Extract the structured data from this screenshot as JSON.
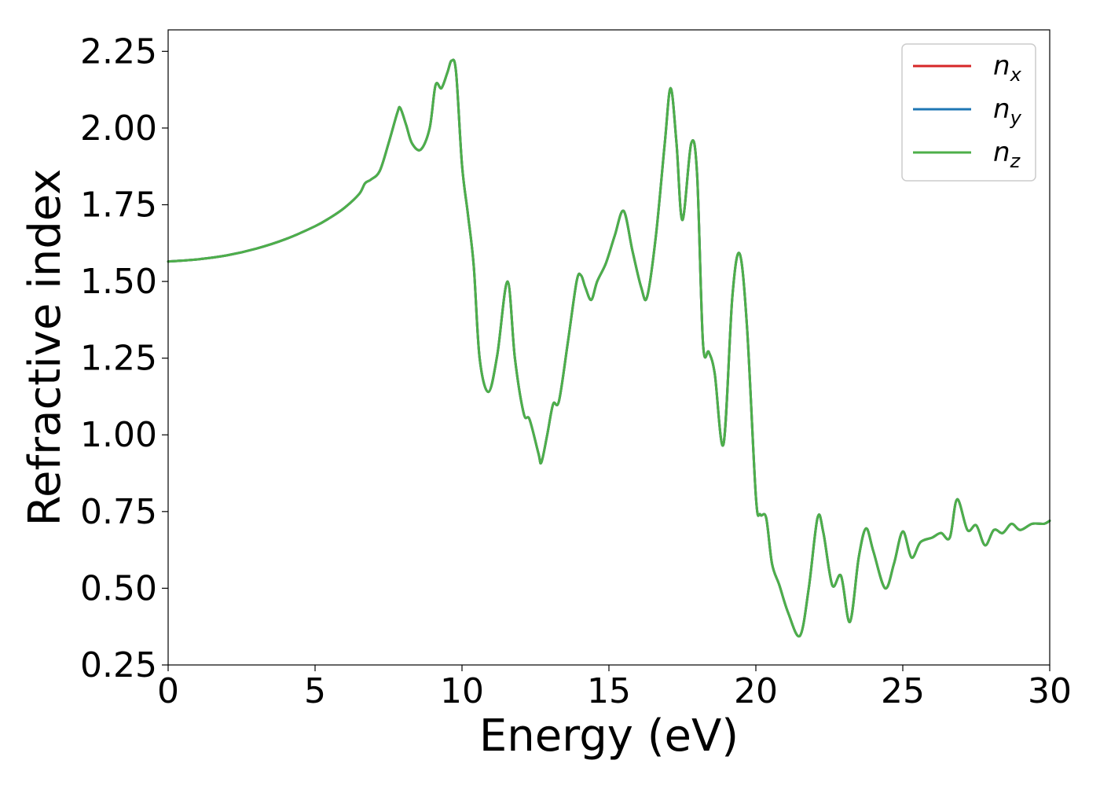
{
  "chart_data": {
    "type": "line",
    "title": "",
    "xlabel": "Energy (eV)",
    "ylabel": "Refractive index",
    "xlim": [
      0,
      30
    ],
    "ylim": [
      0.25,
      2.32
    ],
    "xticks": [
      "0",
      "5",
      "10",
      "15",
      "20",
      "25",
      "30"
    ],
    "yticks": [
      "0.25",
      "0.50",
      "0.75",
      "1.00",
      "1.25",
      "1.50",
      "1.75",
      "2.00",
      "2.25"
    ],
    "grid": false,
    "legend_position": "top-right",
    "series": [
      {
        "name": "n_x",
        "label_base": "n",
        "label_sub": "x",
        "color": "#d62728",
        "x": [
          0,
          1,
          2,
          3,
          4,
          5,
          5.5,
          6,
          6.5,
          6.7,
          6.9,
          7.2,
          7.5,
          7.8,
          7.9,
          8.1,
          8.3,
          8.6,
          8.9,
          9.1,
          9.3,
          9.5,
          9.65,
          9.8,
          10,
          10.2,
          10.4,
          10.6,
          10.9,
          11.2,
          11.55,
          11.8,
          12.1,
          12.3,
          12.6,
          12.7,
          12.9,
          13.1,
          13.3,
          13.6,
          13.9,
          14.05,
          14.2,
          14.4,
          14.6,
          14.9,
          15.2,
          15.5,
          15.8,
          16.1,
          16.3,
          16.6,
          16.9,
          17.1,
          17.3,
          17.5,
          17.8,
          18.0,
          18.2,
          18.4,
          18.6,
          18.9,
          19.2,
          19.45,
          19.7,
          20.0,
          20.15,
          20.35,
          20.55,
          20.8,
          21.1,
          21.5,
          21.8,
          22.1,
          22.3,
          22.6,
          22.9,
          23.2,
          23.5,
          23.75,
          24.0,
          24.4,
          24.7,
          25.0,
          25.3,
          25.6,
          26.0,
          26.3,
          26.6,
          26.85,
          27.2,
          27.5,
          27.8,
          28.1,
          28.4,
          28.7,
          29.0,
          29.4,
          29.8,
          30
        ],
        "y": [
          1.565,
          1.572,
          1.585,
          1.607,
          1.638,
          1.68,
          1.707,
          1.74,
          1.785,
          1.82,
          1.832,
          1.86,
          1.95,
          2.05,
          2.065,
          2.01,
          1.95,
          1.93,
          2.0,
          2.14,
          2.13,
          2.18,
          2.22,
          2.18,
          1.88,
          1.72,
          1.55,
          1.25,
          1.14,
          1.26,
          1.5,
          1.25,
          1.07,
          1.05,
          0.94,
          0.91,
          1.0,
          1.1,
          1.11,
          1.3,
          1.5,
          1.52,
          1.48,
          1.44,
          1.5,
          1.56,
          1.65,
          1.73,
          1.6,
          1.48,
          1.45,
          1.65,
          1.95,
          2.13,
          1.95,
          1.7,
          1.95,
          1.85,
          1.3,
          1.27,
          1.2,
          0.97,
          1.45,
          1.59,
          1.35,
          0.8,
          0.74,
          0.73,
          0.58,
          0.51,
          0.42,
          0.345,
          0.5,
          0.73,
          0.68,
          0.51,
          0.54,
          0.39,
          0.6,
          0.695,
          0.62,
          0.5,
          0.58,
          0.685,
          0.6,
          0.65,
          0.665,
          0.68,
          0.665,
          0.79,
          0.69,
          0.705,
          0.64,
          0.69,
          0.68,
          0.71,
          0.69,
          0.71,
          0.71,
          0.72
        ]
      },
      {
        "name": "n_y",
        "label_base": "n",
        "label_sub": "y",
        "color": "#1f77b4",
        "x": [
          0,
          1,
          2,
          3,
          4,
          5,
          5.5,
          6,
          6.5,
          6.7,
          6.9,
          7.2,
          7.5,
          7.8,
          7.9,
          8.1,
          8.3,
          8.6,
          8.9,
          9.1,
          9.3,
          9.5,
          9.65,
          9.8,
          10,
          10.2,
          10.4,
          10.6,
          10.9,
          11.2,
          11.55,
          11.8,
          12.1,
          12.3,
          12.6,
          12.7,
          12.9,
          13.1,
          13.3,
          13.6,
          13.9,
          14.05,
          14.2,
          14.4,
          14.6,
          14.9,
          15.2,
          15.5,
          15.8,
          16.1,
          16.3,
          16.6,
          16.9,
          17.1,
          17.3,
          17.5,
          17.8,
          18.0,
          18.2,
          18.4,
          18.6,
          18.9,
          19.2,
          19.45,
          19.7,
          20.0,
          20.15,
          20.35,
          20.55,
          20.8,
          21.1,
          21.5,
          21.8,
          22.1,
          22.3,
          22.6,
          22.9,
          23.2,
          23.5,
          23.75,
          24.0,
          24.4,
          24.7,
          25.0,
          25.3,
          25.6,
          26.0,
          26.3,
          26.6,
          26.85,
          27.2,
          27.5,
          27.8,
          28.1,
          28.4,
          28.7,
          29.0,
          29.4,
          29.8,
          30
        ],
        "y": [
          1.565,
          1.572,
          1.585,
          1.607,
          1.638,
          1.68,
          1.707,
          1.74,
          1.785,
          1.82,
          1.832,
          1.86,
          1.95,
          2.05,
          2.065,
          2.01,
          1.95,
          1.93,
          2.0,
          2.14,
          2.13,
          2.18,
          2.22,
          2.18,
          1.88,
          1.72,
          1.55,
          1.25,
          1.14,
          1.26,
          1.5,
          1.25,
          1.07,
          1.05,
          0.94,
          0.91,
          1.0,
          1.1,
          1.11,
          1.3,
          1.5,
          1.52,
          1.48,
          1.44,
          1.5,
          1.56,
          1.65,
          1.73,
          1.6,
          1.48,
          1.45,
          1.65,
          1.95,
          2.13,
          1.95,
          1.7,
          1.95,
          1.85,
          1.3,
          1.27,
          1.2,
          0.97,
          1.45,
          1.59,
          1.35,
          0.8,
          0.74,
          0.73,
          0.58,
          0.51,
          0.42,
          0.345,
          0.5,
          0.73,
          0.68,
          0.51,
          0.54,
          0.39,
          0.6,
          0.695,
          0.62,
          0.5,
          0.58,
          0.685,
          0.6,
          0.65,
          0.665,
          0.68,
          0.665,
          0.79,
          0.69,
          0.705,
          0.64,
          0.69,
          0.68,
          0.71,
          0.69,
          0.71,
          0.71,
          0.72
        ]
      },
      {
        "name": "n_z",
        "label_base": "n",
        "label_sub": "z",
        "color": "#4daf4a",
        "x": [
          0,
          1,
          2,
          3,
          4,
          5,
          5.5,
          6,
          6.5,
          6.7,
          6.9,
          7.2,
          7.5,
          7.8,
          7.9,
          8.1,
          8.3,
          8.6,
          8.9,
          9.1,
          9.3,
          9.5,
          9.65,
          9.8,
          10,
          10.2,
          10.4,
          10.6,
          10.9,
          11.2,
          11.55,
          11.8,
          12.1,
          12.3,
          12.6,
          12.7,
          12.9,
          13.1,
          13.3,
          13.6,
          13.9,
          14.05,
          14.2,
          14.4,
          14.6,
          14.9,
          15.2,
          15.5,
          15.8,
          16.1,
          16.3,
          16.6,
          16.9,
          17.1,
          17.3,
          17.5,
          17.8,
          18.0,
          18.2,
          18.4,
          18.6,
          18.9,
          19.2,
          19.45,
          19.7,
          20.0,
          20.15,
          20.35,
          20.55,
          20.8,
          21.1,
          21.5,
          21.8,
          22.1,
          22.3,
          22.6,
          22.9,
          23.2,
          23.5,
          23.75,
          24.0,
          24.4,
          24.7,
          25.0,
          25.3,
          25.6,
          26.0,
          26.3,
          26.6,
          26.85,
          27.2,
          27.5,
          27.8,
          28.1,
          28.4,
          28.7,
          29.0,
          29.4,
          29.8,
          30
        ],
        "y": [
          1.565,
          1.572,
          1.585,
          1.607,
          1.638,
          1.68,
          1.707,
          1.74,
          1.785,
          1.82,
          1.832,
          1.86,
          1.95,
          2.05,
          2.065,
          2.01,
          1.95,
          1.93,
          2.0,
          2.14,
          2.13,
          2.18,
          2.22,
          2.18,
          1.88,
          1.72,
          1.55,
          1.25,
          1.14,
          1.26,
          1.5,
          1.25,
          1.07,
          1.05,
          0.94,
          0.91,
          1.0,
          1.1,
          1.11,
          1.3,
          1.5,
          1.52,
          1.48,
          1.44,
          1.5,
          1.56,
          1.65,
          1.73,
          1.6,
          1.48,
          1.45,
          1.65,
          1.95,
          2.13,
          1.95,
          1.7,
          1.95,
          1.85,
          1.3,
          1.27,
          1.2,
          0.97,
          1.45,
          1.59,
          1.35,
          0.8,
          0.74,
          0.73,
          0.58,
          0.51,
          0.42,
          0.345,
          0.5,
          0.73,
          0.68,
          0.51,
          0.54,
          0.39,
          0.6,
          0.695,
          0.62,
          0.5,
          0.58,
          0.685,
          0.6,
          0.65,
          0.665,
          0.68,
          0.665,
          0.79,
          0.69,
          0.705,
          0.64,
          0.69,
          0.68,
          0.71,
          0.69,
          0.71,
          0.71,
          0.72
        ]
      }
    ]
  }
}
